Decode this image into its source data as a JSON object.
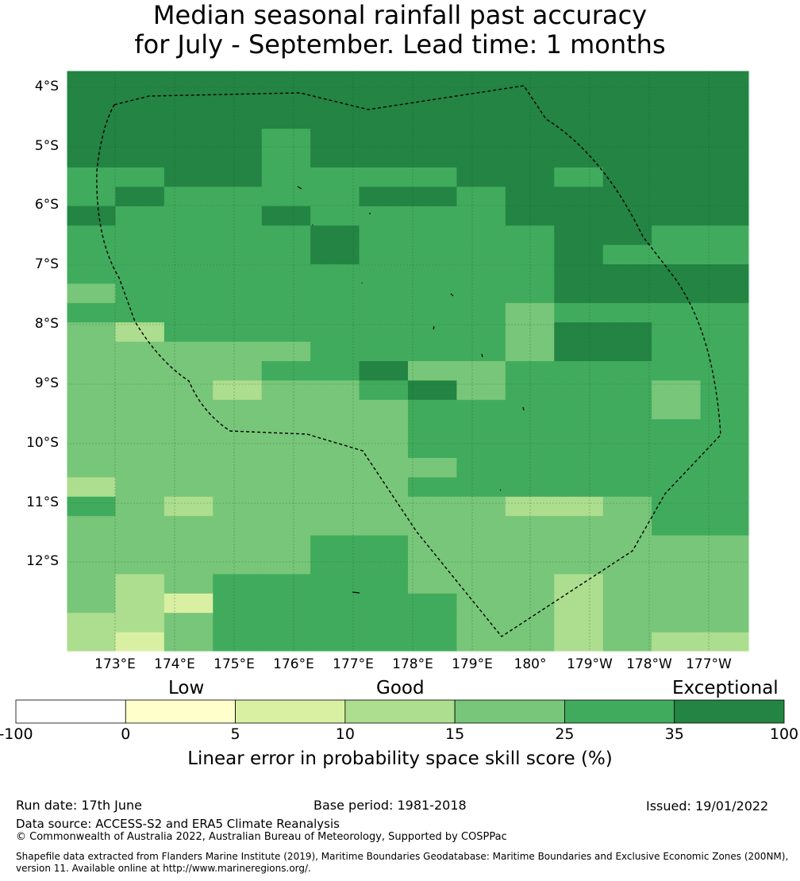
{
  "title_line1": "Median seasonal rainfall past accuracy",
  "title_line2": "for July - September. Lead time: 1 months",
  "lat_labels": [
    "4°S",
    "5°S",
    "6°S",
    "7°S",
    "8°S",
    "9°S",
    "10°S",
    "11°S",
    "12°S"
  ],
  "lon_labels": [
    "173°E",
    "174°E",
    "175°E",
    "176°E",
    "177°E",
    "178°E",
    "179°E",
    "180°",
    "179°W",
    "178°W",
    "177°W"
  ],
  "legend": {
    "categories": [
      "Low",
      "Good",
      "Exceptional"
    ],
    "ticks": [
      "-100",
      "0",
      "5",
      "10",
      "15",
      "25",
      "35",
      "100"
    ],
    "colors": [
      "#ffffff",
      "#ffffcc",
      "#d9f0a3",
      "#addd8e",
      "#78c679",
      "#41ab5d",
      "#238443"
    ],
    "label": "Linear error in probability space skill score (%)"
  },
  "grid": {
    "rows": [
      "66666666666666",
      "66666666666666",
      "66666666666666",
      "66665666666666",
      "66665666666666",
      "55665555665666",
      "56555566566666",
      "65556555566666",
      "55555655556655",
      "55555655556555",
      "55555555556666",
      "45555555556666",
      "55555555545555",
      "43555555546655",
      "44444555546655",
      "44445564455555",
      "44434456455545",
      "44444445555545",
      "44444445555555",
      "44444445555555",
      "44444444555555",
      "34444445555555",
      "54344444433455",
      "44444444444455",
      "44444554444444",
      "44444554444444",
      "43455554443444",
      "43255555443444",
      "33455555443444",
      "32455555443433"
    ]
  },
  "footer": {
    "run_date": "Run date: 17th June",
    "base_period": "Base period: 1981-2018",
    "issued": "Issued: 19/01/2022",
    "data_source": "Data source: ACCESS-S2 and ERA5 Climate Reanalysis",
    "copyright": "© Commonwealth of Australia 2022, Australian Bureau of Meteorology, Supported by COSPPac",
    "shapefile_1": "Shapefile data extracted from Flanders Marine Institute (2019), Maritime Boundaries Geodatabase: Maritime Boundaries and Exclusive Economic Zones (200NM),",
    "shapefile_2": "version 11. Available online at http://www.marineregions.org/."
  }
}
